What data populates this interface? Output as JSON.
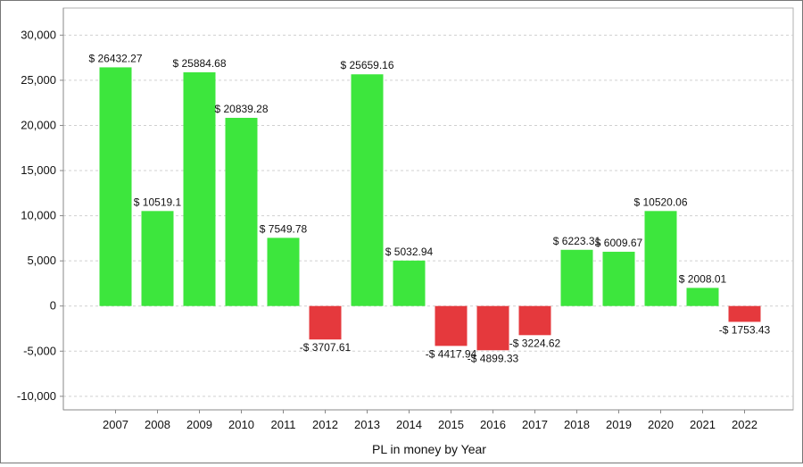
{
  "chart_data": {
    "type": "bar",
    "xlabel": "PL in money by Year",
    "ylabel": "",
    "ylim": [
      -11500,
      33000
    ],
    "yticks": [
      -10000,
      -5000,
      0,
      5000,
      10000,
      15000,
      20000,
      25000,
      30000
    ],
    "ytick_labels": [
      "-10,000",
      "-5,000",
      "0",
      "5,000",
      "10,000",
      "15,000",
      "20,000",
      "25,000",
      "30,000"
    ],
    "grid": true,
    "categories": [
      "2007",
      "2008",
      "2009",
      "2010",
      "2011",
      "2012",
      "2013",
      "2014",
      "2015",
      "2016",
      "2017",
      "2018",
      "2019",
      "2020",
      "2021",
      "2022"
    ],
    "values": [
      26432.27,
      10519.1,
      25884.68,
      20839.28,
      7549.78,
      -3707.61,
      25659.16,
      5032.94,
      -4417.94,
      -4899.33,
      -3224.62,
      6223.31,
      6009.67,
      10520.06,
      2008.01,
      -1753.43
    ],
    "data_labels": [
      "$ 26432.27",
      "$ 10519.1",
      "$ 25884.68",
      "$ 20839.28",
      "$ 7549.78",
      "-$ 3707.61",
      "$ 25659.16",
      "$ 5032.94",
      "-$ 4417.94",
      "-$ 4899.33",
      "-$ 3224.62",
      "$ 6223.31",
      "$ 6009.67",
      "$ 10520.06",
      "$ 2008.01",
      "-$ 1753.43"
    ],
    "colors": {
      "positive": "#3de63d",
      "negative": "#e5393d",
      "grid": "#d0d0d0",
      "axis": "#888888"
    }
  }
}
